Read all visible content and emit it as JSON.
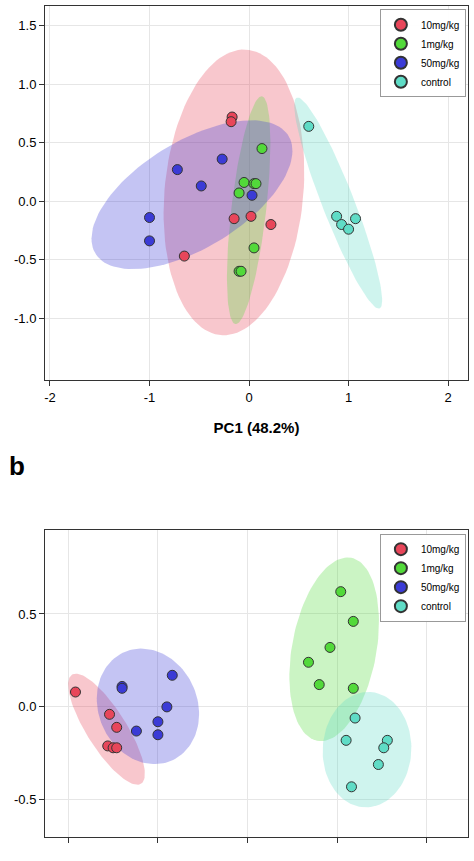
{
  "chart_data": [
    {
      "type": "scatter",
      "x_label": "PC1 (48.2%)",
      "xlim": [
        -2.05,
        2.2
      ],
      "xticks": [
        -2,
        -1,
        0,
        1,
        2
      ],
      "ylim": [
        -1.53,
        1.67
      ],
      "yticks": [
        {
          "value": -1,
          "label": "-1.0"
        },
        {
          "value": -0.5,
          "label": "-0.5"
        },
        {
          "value": 0,
          "label": "0.0"
        },
        {
          "value": 0.5,
          "label": "0.5"
        },
        {
          "value": 1,
          "label": "1.0"
        },
        {
          "value": 1.5,
          "label": "1.5"
        }
      ],
      "grid": true,
      "legend": "top right",
      "marker": "circle",
      "series": [
        {
          "name": "10mg/kg",
          "color": "#e8465a",
          "x": [
            -0.17,
            -0.18,
            -0.15,
            0.02,
            0.22,
            -0.65
          ],
          "y": [
            0.72,
            0.68,
            -0.15,
            -0.13,
            -0.2,
            -0.47
          ]
        },
        {
          "name": "1mg/kg",
          "color": "#52d93a",
          "x": [
            0.13,
            -0.05,
            0.05,
            0.07,
            -0.1,
            0.05,
            -0.1,
            -0.08
          ],
          "y": [
            0.45,
            0.16,
            0.15,
            0.15,
            0.07,
            -0.4,
            -0.6,
            -0.6
          ]
        },
        {
          "name": "50mg/kg",
          "color": "#3b3bd6",
          "x": [
            -0.72,
            -0.48,
            -0.27,
            0.03,
            -1.0,
            -1.0
          ],
          "y": [
            0.27,
            0.13,
            0.36,
            0.05,
            -0.14,
            -0.34
          ]
        },
        {
          "name": "control",
          "color": "#5fdcc6",
          "x": [
            0.6,
            0.88,
            0.93,
            1.0,
            1.07
          ],
          "y": [
            0.64,
            -0.13,
            -0.2,
            -0.24,
            -0.15
          ]
        }
      ]
    },
    {
      "type": "scatter",
      "title": "b",
      "xlim": [
        -1.13,
        1.23
      ],
      "xticks": [
        -1,
        -0.5,
        0,
        0.5,
        1
      ],
      "ylim": [
        -0.7,
        0.95
      ],
      "yticks": [
        -0.5,
        {
          "value": 0,
          "label": "0.0"
        },
        0.5
      ],
      "tick_labels": "y",
      "grid": true,
      "legend": "top right",
      "marker": "circle",
      "series": [
        {
          "name": "10mg/kg",
          "color": "#e8465a",
          "x": [
            -0.96,
            -0.77,
            -0.73,
            -0.78,
            -0.75,
            -0.73
          ],
          "y": [
            0.08,
            -0.04,
            -0.11,
            -0.21,
            -0.22,
            -0.22
          ]
        },
        {
          "name": "1mg/kg",
          "color": "#52d93a",
          "x": [
            0.52,
            0.59,
            0.46,
            0.34,
            0.4,
            0.59
          ],
          "y": [
            0.62,
            0.46,
            0.32,
            0.24,
            0.12,
            0.1
          ]
        },
        {
          "name": "50mg/kg",
          "color": "#3b3bd6",
          "x": [
            -0.7,
            -0.7,
            -0.42,
            -0.45,
            -0.5,
            -0.5,
            -0.62
          ],
          "y": [
            0.11,
            0.1,
            0.17,
            0.0,
            -0.08,
            -0.15,
            -0.13
          ]
        },
        {
          "name": "control",
          "color": "#5fdcc6",
          "x": [
            0.6,
            0.55,
            0.78,
            0.76,
            0.73,
            0.58
          ],
          "y": [
            -0.06,
            -0.18,
            -0.18,
            -0.22,
            -0.31,
            -0.43
          ]
        }
      ]
    }
  ]
}
